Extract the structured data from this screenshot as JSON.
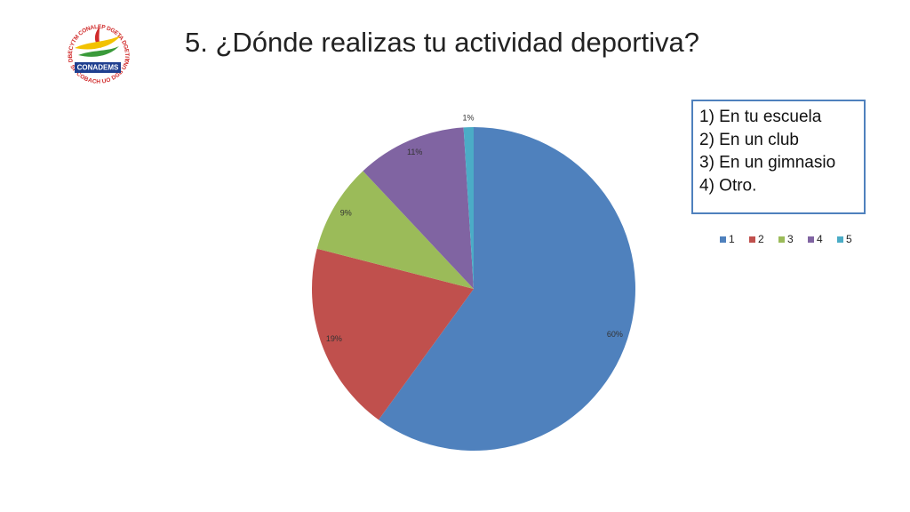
{
  "logo": {
    "name": "CONADEMS",
    "top_text": "DBECYTM CONALEP DGETA DGETI IPN",
    "bottom_text": "SP COBACH UO DGB UNAM PK"
  },
  "chart_data": {
    "type": "pie",
    "title": "5. ¿Dónde realizas tu actividad deportiva?",
    "notes": [
      "1) En tu escuela",
      "2) En un club",
      "3) En un gimnasio",
      "4) Otro."
    ],
    "categories": [
      "1",
      "2",
      "3",
      "4",
      "5"
    ],
    "values": [
      60,
      19,
      9,
      11,
      1
    ],
    "value_labels": [
      "60%",
      "19%",
      "9%",
      "11%",
      "1%"
    ],
    "colors": [
      "#4f81bd",
      "#c0504d",
      "#9bbb59",
      "#8064a2",
      "#4bacc6"
    ],
    "legend": "right"
  }
}
